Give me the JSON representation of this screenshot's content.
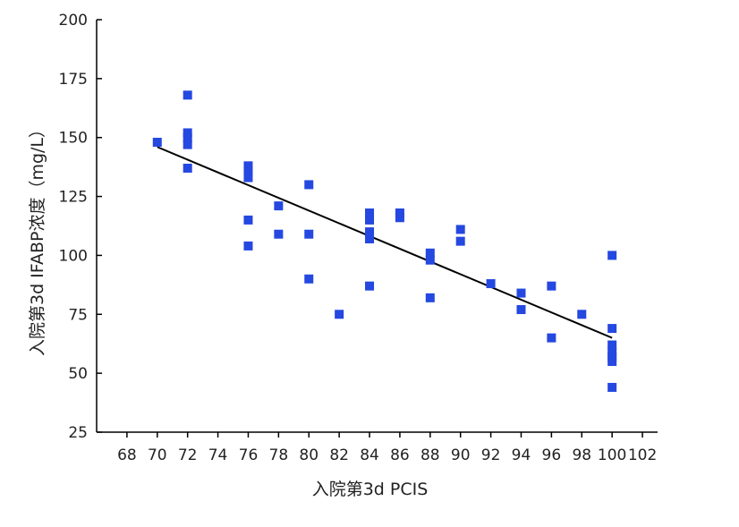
{
  "chart_data": {
    "type": "scatter",
    "title": "",
    "xlabel": "入院第3d PCIS",
    "ylabel": "入院第3d IFABP浓度（mg/L）",
    "xlim": [
      66,
      103
    ],
    "ylim": [
      25,
      200
    ],
    "xticks": [
      "68",
      "70",
      "72",
      "74",
      "76",
      "78",
      "80",
      "82",
      "84",
      "86",
      "88",
      "90",
      "92",
      "94",
      "96",
      "98",
      "100",
      "102"
    ],
    "yticks": [
      "25",
      "50",
      "75",
      "100",
      "125",
      "150",
      "175",
      "200"
    ],
    "grid": false,
    "legend": "none",
    "marker_color": "#2448e0",
    "trend_color": "#000000",
    "points": [
      {
        "x": 70,
        "y": 148
      },
      {
        "x": 72,
        "y": 168
      },
      {
        "x": 72,
        "y": 152
      },
      {
        "x": 72,
        "y": 150
      },
      {
        "x": 72,
        "y": 147
      },
      {
        "x": 72,
        "y": 137
      },
      {
        "x": 76,
        "y": 138
      },
      {
        "x": 76,
        "y": 136
      },
      {
        "x": 76,
        "y": 133
      },
      {
        "x": 76,
        "y": 115
      },
      {
        "x": 76,
        "y": 104
      },
      {
        "x": 78,
        "y": 121
      },
      {
        "x": 78,
        "y": 109
      },
      {
        "x": 80,
        "y": 130
      },
      {
        "x": 80,
        "y": 109
      },
      {
        "x": 80,
        "y": 90
      },
      {
        "x": 82,
        "y": 75
      },
      {
        "x": 84,
        "y": 118
      },
      {
        "x": 84,
        "y": 115
      },
      {
        "x": 84,
        "y": 110
      },
      {
        "x": 84,
        "y": 107
      },
      {
        "x": 84,
        "y": 87
      },
      {
        "x": 86,
        "y": 118
      },
      {
        "x": 86,
        "y": 116
      },
      {
        "x": 88,
        "y": 101
      },
      {
        "x": 88,
        "y": 98
      },
      {
        "x": 88,
        "y": 82
      },
      {
        "x": 90,
        "y": 111
      },
      {
        "x": 90,
        "y": 106
      },
      {
        "x": 92,
        "y": 88
      },
      {
        "x": 94,
        "y": 84
      },
      {
        "x": 94,
        "y": 77
      },
      {
        "x": 96,
        "y": 87
      },
      {
        "x": 96,
        "y": 65
      },
      {
        "x": 98,
        "y": 75
      },
      {
        "x": 100,
        "y": 100
      },
      {
        "x": 100,
        "y": 69
      },
      {
        "x": 100,
        "y": 62
      },
      {
        "x": 100,
        "y": 59
      },
      {
        "x": 100,
        "y": 57
      },
      {
        "x": 100,
        "y": 55
      },
      {
        "x": 100,
        "y": 44
      }
    ],
    "trendline": {
      "x": [
        70,
        100
      ],
      "y": [
        146,
        65
      ]
    }
  }
}
